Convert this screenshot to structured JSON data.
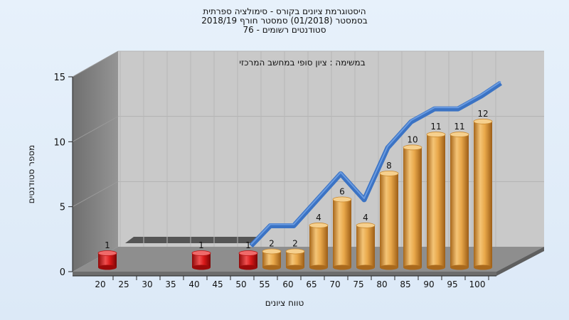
{
  "title_lines": [
    "היסטוגרמת ציונים בקורס - סימולציה ספרתית",
    "בסמסטר  (01/2018)  סמסטר חורף 2018/19",
    "סטודנטים רשומים - 76"
  ],
  "chart_data": {
    "type": "bar",
    "subtitle": "במשימה : ציון סופי במחשב המרכזי",
    "xlabel": "טווח ציונים",
    "ylabel": "מספר סטודנטים",
    "categories": [
      "20",
      "25",
      "30",
      "35",
      "40",
      "45",
      "50",
      "55",
      "60",
      "65",
      "70",
      "75",
      "80",
      "85",
      "90",
      "95",
      "100"
    ],
    "values": [
      1,
      0,
      0,
      0,
      1,
      0,
      1,
      2,
      2,
      4,
      6,
      4,
      8,
      10,
      11,
      11,
      12
    ],
    "failing_categories": [
      "20",
      "40",
      "50"
    ],
    "ylim": [
      0,
      15
    ],
    "yticks": [
      0,
      5,
      10,
      15
    ],
    "grid": true,
    "legend": "none",
    "colors": {
      "pass_bar": "#e8a53e",
      "fail_bar": "#d81818",
      "curve": "#3b73c4",
      "back_wall": "#c8c8c8",
      "side_wall": "#7f7f7f",
      "floor": "#8e8e8e"
    }
  }
}
